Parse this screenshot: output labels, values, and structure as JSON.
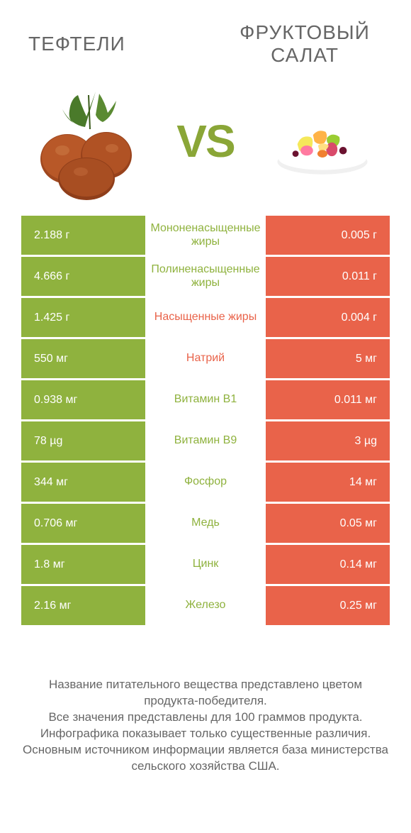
{
  "colors": {
    "green": "#8fb23e",
    "orange": "#e9634a",
    "vs": "#8aa637",
    "text": "#666666",
    "bg": "#ffffff"
  },
  "left_title": "ТЕФТЕЛИ",
  "right_title": "ФРУКТОВЫЙ САЛАТ",
  "vs": "VS",
  "rows": [
    {
      "left": "2.188 г",
      "label": "Мононенасыщенные жиры",
      "right": "0.005 г",
      "winner": "left"
    },
    {
      "left": "4.666 г",
      "label": "Полиненасыщенные жиры",
      "right": "0.011 г",
      "winner": "left"
    },
    {
      "left": "1.425 г",
      "label": "Насыщенные жиры",
      "right": "0.004 г",
      "winner": "right"
    },
    {
      "left": "550 мг",
      "label": "Натрий",
      "right": "5 мг",
      "winner": "right"
    },
    {
      "left": "0.938 мг",
      "label": "Витамин B1",
      "right": "0.011 мг",
      "winner": "left"
    },
    {
      "left": "78 µg",
      "label": "Витамин B9",
      "right": "3 µg",
      "winner": "left"
    },
    {
      "left": "344 мг",
      "label": "Фосфор",
      "right": "14 мг",
      "winner": "left"
    },
    {
      "left": "0.706 мг",
      "label": "Медь",
      "right": "0.05 мг",
      "winner": "left"
    },
    {
      "left": "1.8 мг",
      "label": "Цинк",
      "right": "0.14 мг",
      "winner": "left"
    },
    {
      "left": "2.16 мг",
      "label": "Железо",
      "right": "0.25 мг",
      "winner": "left"
    }
  ],
  "footer_lines": [
    "Название питательного вещества представлено цветом продукта-победителя.",
    "Все значения представлены для 100 граммов продукта.",
    "Инфографика показывает только существенные различия.",
    "Основным источником информации является база министерства сельского хозяйства США."
  ]
}
